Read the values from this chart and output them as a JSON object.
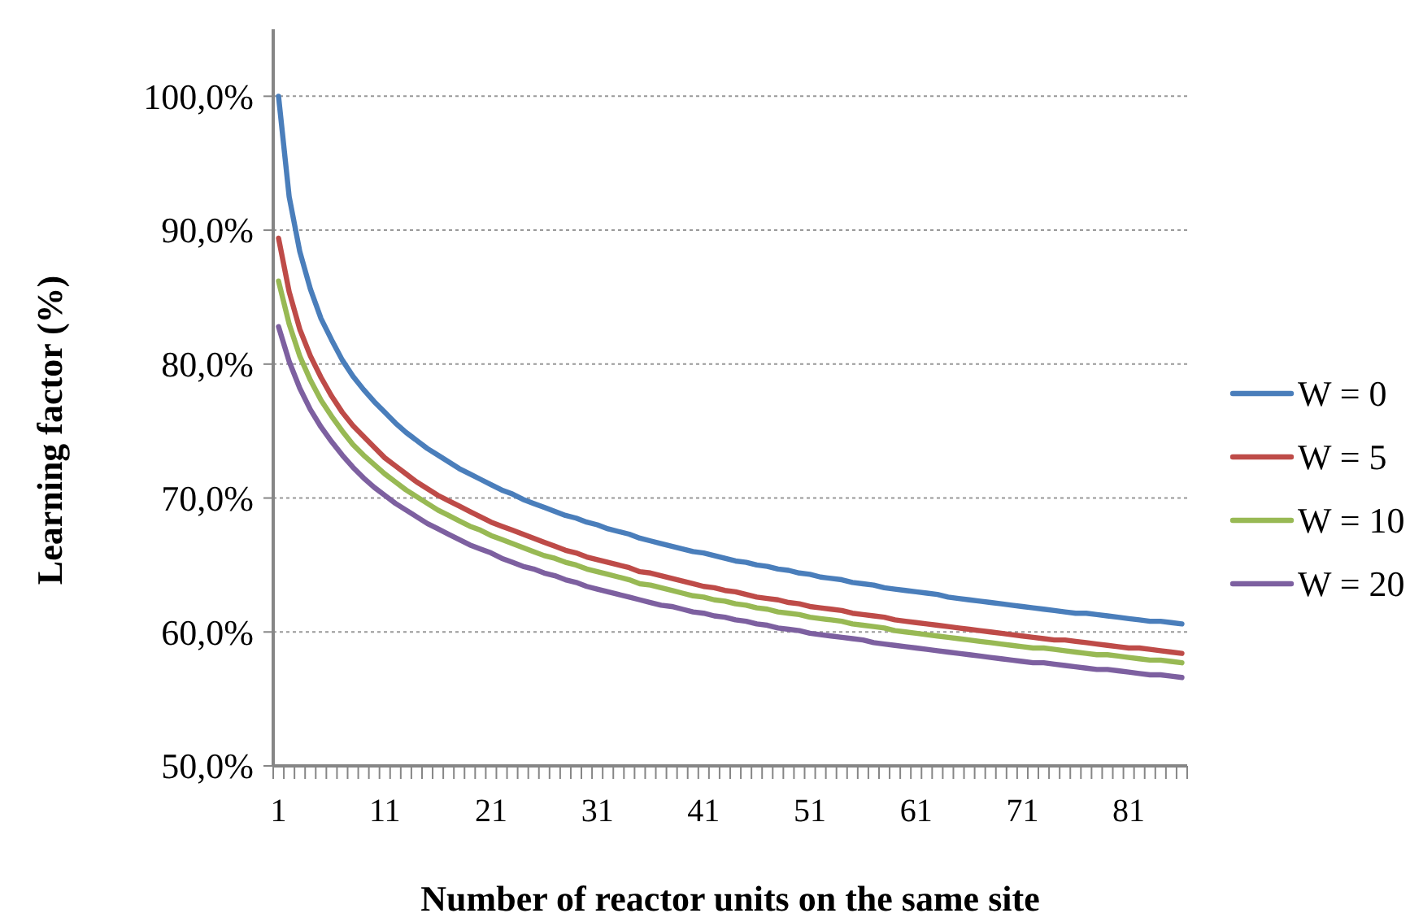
{
  "chart_data": {
    "type": "line",
    "xlabel": "Number of reactor units on the same site",
    "ylabel": "Learning factor (%)",
    "categories": [
      "1",
      null,
      null,
      null,
      null,
      null,
      null,
      null,
      null,
      null,
      "11",
      null,
      null,
      null,
      null,
      null,
      null,
      null,
      null,
      null,
      "21",
      null,
      null,
      null,
      null,
      null,
      null,
      null,
      null,
      null,
      "31",
      null,
      null,
      null,
      null,
      null,
      null,
      null,
      null,
      null,
      "41",
      null,
      null,
      null,
      null,
      null,
      null,
      null,
      null,
      null,
      "51",
      null,
      null,
      null,
      null,
      null,
      null,
      null,
      null,
      null,
      "61",
      null,
      null,
      null,
      null,
      null,
      null,
      null,
      null,
      null,
      "71",
      null,
      null,
      null,
      null,
      null,
      null,
      null,
      null,
      null,
      "81",
      null,
      null,
      null,
      null,
      null
    ],
    "ylim": [
      50,
      105
    ],
    "yticks": [
      {
        "value": 50,
        "label": "50,0%"
      },
      {
        "value": 60,
        "label": "60,0%"
      },
      {
        "value": 70,
        "label": "70,0%"
      },
      {
        "value": 80,
        "label": "80,0%"
      },
      {
        "value": 90,
        "label": "90,0%"
      },
      {
        "value": 100,
        "label": "100,0%"
      }
    ],
    "grid": "y",
    "legend": "right",
    "line_style": "solid",
    "marker": "none",
    "series": [
      {
        "name": "W = 0",
        "color": "#4a7ebb",
        "values": [
          100,
          92.5,
          88.4,
          85.6,
          83.4,
          81.8,
          80.3,
          79.1,
          78.1,
          77.2,
          76.4,
          75.6,
          74.9,
          74.3,
          73.7,
          73.2,
          72.7,
          72.2,
          71.8,
          71.4,
          71.0,
          70.6,
          70.3,
          69.9,
          69.6,
          69.3,
          69.0,
          68.7,
          68.5,
          68.2,
          68.0,
          67.7,
          67.5,
          67.3,
          67.0,
          66.8,
          66.6,
          66.4,
          66.2,
          66.0,
          65.9,
          65.7,
          65.5,
          65.3,
          65.2,
          65.0,
          64.9,
          64.7,
          64.6,
          64.4,
          64.3,
          64.1,
          64.0,
          63.9,
          63.7,
          63.6,
          63.5,
          63.3,
          63.2,
          63.1,
          63.0,
          62.9,
          62.8,
          62.6,
          62.5,
          62.4,
          62.3,
          62.2,
          62.1,
          62.0,
          61.9,
          61.8,
          61.7,
          61.6,
          61.5,
          61.4,
          61.4,
          61.3,
          61.2,
          61.1,
          61.0,
          60.9,
          60.8,
          60.8,
          60.7,
          60.6
        ]
      },
      {
        "name": "W = 5",
        "color": "#be4b48",
        "values": [
          89.4,
          85.4,
          82.6,
          80.6,
          79.0,
          77.6,
          76.4,
          75.4,
          74.6,
          73.8,
          73.0,
          72.4,
          71.8,
          71.2,
          70.7,
          70.2,
          69.8,
          69.4,
          69.0,
          68.6,
          68.2,
          67.9,
          67.6,
          67.3,
          67.0,
          66.7,
          66.4,
          66.1,
          65.9,
          65.6,
          65.4,
          65.2,
          65.0,
          64.8,
          64.5,
          64.4,
          64.2,
          64.0,
          63.8,
          63.6,
          63.4,
          63.3,
          63.1,
          63.0,
          62.8,
          62.6,
          62.5,
          62.4,
          62.2,
          62.1,
          61.9,
          61.8,
          61.7,
          61.6,
          61.4,
          61.3,
          61.2,
          61.1,
          60.9,
          60.8,
          60.7,
          60.6,
          60.5,
          60.4,
          60.3,
          60.2,
          60.1,
          60.0,
          59.9,
          59.8,
          59.7,
          59.6,
          59.5,
          59.4,
          59.4,
          59.3,
          59.2,
          59.1,
          59.0,
          58.9,
          58.8,
          58.8,
          58.7,
          58.6,
          58.5,
          58.4
        ]
      },
      {
        "name": "W = 10",
        "color": "#98b954",
        "values": [
          86.2,
          83.0,
          80.6,
          78.8,
          77.3,
          76.1,
          75.0,
          74.0,
          73.2,
          72.5,
          71.8,
          71.2,
          70.6,
          70.1,
          69.6,
          69.1,
          68.7,
          68.3,
          67.9,
          67.6,
          67.2,
          66.9,
          66.6,
          66.3,
          66.0,
          65.7,
          65.5,
          65.2,
          65.0,
          64.7,
          64.5,
          64.3,
          64.1,
          63.9,
          63.6,
          63.5,
          63.3,
          63.1,
          62.9,
          62.7,
          62.6,
          62.4,
          62.3,
          62.1,
          62.0,
          61.8,
          61.7,
          61.5,
          61.4,
          61.3,
          61.1,
          61.0,
          60.9,
          60.8,
          60.6,
          60.5,
          60.4,
          60.3,
          60.1,
          60.0,
          59.9,
          59.8,
          59.7,
          59.6,
          59.5,
          59.4,
          59.3,
          59.2,
          59.1,
          59.0,
          58.9,
          58.8,
          58.8,
          58.7,
          58.6,
          58.5,
          58.4,
          58.3,
          58.3,
          58.2,
          58.1,
          58.0,
          57.9,
          57.9,
          57.8,
          57.7
        ]
      },
      {
        "name": "W = 20",
        "color": "#7d60a0",
        "values": [
          82.8,
          80.2,
          78.2,
          76.6,
          75.3,
          74.2,
          73.2,
          72.3,
          71.5,
          70.8,
          70.2,
          69.6,
          69.1,
          68.6,
          68.1,
          67.7,
          67.3,
          66.9,
          66.5,
          66.2,
          65.9,
          65.5,
          65.2,
          64.9,
          64.7,
          64.4,
          64.2,
          63.9,
          63.7,
          63.4,
          63.2,
          63.0,
          62.8,
          62.6,
          62.4,
          62.2,
          62.0,
          61.9,
          61.7,
          61.5,
          61.4,
          61.2,
          61.1,
          60.9,
          60.8,
          60.6,
          60.5,
          60.3,
          60.2,
          60.1,
          59.9,
          59.8,
          59.7,
          59.6,
          59.5,
          59.4,
          59.2,
          59.1,
          59.0,
          58.9,
          58.8,
          58.7,
          58.6,
          58.5,
          58.4,
          58.3,
          58.2,
          58.1,
          58.0,
          57.9,
          57.8,
          57.7,
          57.7,
          57.6,
          57.5,
          57.4,
          57.3,
          57.2,
          57.2,
          57.1,
          57.0,
          56.9,
          56.8,
          56.8,
          56.7,
          56.6
        ]
      }
    ]
  }
}
